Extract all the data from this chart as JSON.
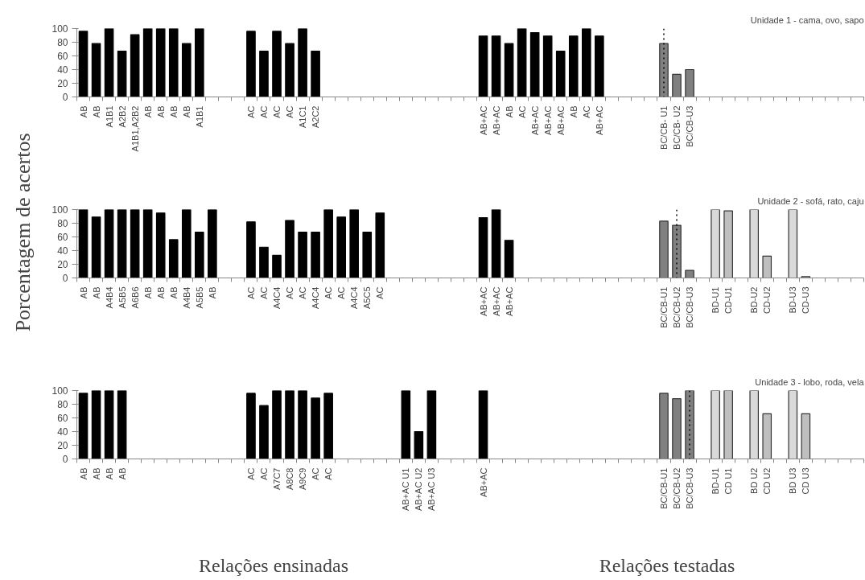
{
  "chart_data": [
    {
      "type": "bar",
      "title": "Unidade 1 - cama, ovo, sapo",
      "categories": [
        "AB",
        "AB",
        "A1B1",
        "A2B2",
        "A1B1,A2B2",
        "AB",
        "AB",
        "AB",
        "AB",
        "A1B1",
        null,
        null,
        null,
        "AC",
        "AC",
        "AC",
        "AC",
        "A1C1",
        "A2C2",
        null,
        null,
        null,
        null,
        null,
        null,
        null,
        null,
        null,
        null,
        null,
        null,
        "AB+AC",
        "AB+AC",
        "AB",
        "AC",
        "AB+AC",
        "AB+AC",
        "AB+AC",
        "AB",
        "AC",
        "AB+AC",
        null,
        null,
        null,
        null,
        "BC/CB- U1",
        "BC/CB- U2",
        "BC/CB-U3",
        null,
        null,
        null,
        null,
        null,
        null,
        null,
        null,
        null,
        null,
        null,
        null,
        null
      ],
      "series": [
        {
          "color": "#000000",
          "values": [
            96,
            78,
            100,
            67,
            91,
            100,
            100,
            100,
            78,
            100,
            null,
            null,
            null,
            96,
            67,
            96,
            78,
            100,
            67,
            null,
            null,
            null,
            null,
            null,
            null,
            null,
            null,
            null,
            null,
            null,
            null,
            89,
            89,
            78,
            100,
            94,
            89,
            67,
            89,
            100,
            89,
            null,
            null,
            null,
            null,
            null,
            null,
            null,
            null,
            null,
            null,
            null,
            null,
            null,
            null,
            null,
            null,
            null,
            null,
            null,
            null
          ]
        },
        {
          "color": "#808080",
          "values": [
            null,
            null,
            null,
            null,
            null,
            null,
            null,
            null,
            null,
            null,
            null,
            null,
            null,
            null,
            null,
            null,
            null,
            null,
            null,
            null,
            null,
            null,
            null,
            null,
            null,
            null,
            null,
            null,
            null,
            null,
            null,
            null,
            null,
            null,
            null,
            null,
            null,
            null,
            null,
            null,
            null,
            null,
            null,
            null,
            null,
            78,
            33,
            40,
            null,
            null,
            null,
            null,
            null,
            null,
            null,
            null,
            null,
            null,
            null,
            null,
            null
          ]
        }
      ],
      "ylim": [
        0,
        100
      ],
      "yticks": [
        0,
        20,
        40,
        60,
        80,
        100
      ],
      "ref_lines": [
        {
          "axis": "x",
          "value": "BC/CB- U1",
          "line_style": "dotted"
        }
      ]
    },
    {
      "type": "bar",
      "title": "Unidade 2 - sofá, rato, caju",
      "ylabel": "Porcentagem de acertos",
      "categories": [
        "AB",
        "AB",
        "A4B4",
        "A5B5",
        "A6B6",
        "AB",
        "AB",
        "AB",
        "A4B4",
        "A5B5",
        "AB",
        null,
        null,
        "AC",
        "AC",
        "A4C4",
        "AC",
        "AC",
        "A4C4",
        "AC",
        "AC",
        "A4C4",
        "A5C5",
        "AC",
        null,
        null,
        null,
        null,
        null,
        null,
        null,
        "AB+AC",
        "AB+AC",
        "AB+AC",
        null,
        null,
        null,
        null,
        null,
        null,
        null,
        null,
        null,
        null,
        null,
        "BC/CB-U1",
        "BC/CB-U2",
        "BC/CB-U3",
        null,
        "BD-U1",
        "CD-U1",
        null,
        "BD-U2",
        "CD-U2",
        null,
        "BD-U3",
        "CD-U3",
        null,
        null,
        null,
        null
      ],
      "series": [
        {
          "color": "#000000",
          "values": [
            100,
            89,
            100,
            100,
            100,
            100,
            95,
            56,
            100,
            67,
            100,
            null,
            null,
            82,
            45,
            33,
            84,
            67,
            67,
            100,
            89,
            100,
            67,
            95,
            null,
            null,
            null,
            null,
            null,
            null,
            null,
            88,
            100,
            55,
            null,
            null,
            null,
            null,
            null,
            null,
            null,
            null,
            null,
            null,
            null,
            null,
            null,
            null,
            null,
            null,
            null,
            null,
            null,
            null,
            null,
            null,
            null,
            null,
            null,
            null,
            null
          ]
        },
        {
          "color": "#808080",
          "values": [
            null,
            null,
            null,
            null,
            null,
            null,
            null,
            null,
            null,
            null,
            null,
            null,
            null,
            null,
            null,
            null,
            null,
            null,
            null,
            null,
            null,
            null,
            null,
            null,
            null,
            null,
            null,
            null,
            null,
            null,
            null,
            null,
            null,
            null,
            null,
            null,
            null,
            null,
            null,
            null,
            null,
            null,
            null,
            null,
            null,
            83,
            77,
            11,
            null,
            null,
            null,
            null,
            null,
            null,
            null,
            null,
            null,
            null,
            null,
            null,
            null
          ]
        },
        {
          "color": "#d9d9d9",
          "values": [
            null,
            null,
            null,
            null,
            null,
            null,
            null,
            null,
            null,
            null,
            null,
            null,
            null,
            null,
            null,
            null,
            null,
            null,
            null,
            null,
            null,
            null,
            null,
            null,
            null,
            null,
            null,
            null,
            null,
            null,
            null,
            null,
            null,
            null,
            null,
            null,
            null,
            null,
            null,
            null,
            null,
            null,
            null,
            null,
            null,
            null,
            null,
            null,
            null,
            100,
            null,
            null,
            100,
            null,
            null,
            100,
            null,
            null,
            null,
            null,
            null
          ]
        },
        {
          "color": "#bfbfbf",
          "values": [
            null,
            null,
            null,
            null,
            null,
            null,
            null,
            null,
            null,
            null,
            null,
            null,
            null,
            null,
            null,
            null,
            null,
            null,
            null,
            null,
            null,
            null,
            null,
            null,
            null,
            null,
            null,
            null,
            null,
            null,
            null,
            null,
            null,
            null,
            null,
            null,
            null,
            null,
            null,
            null,
            null,
            null,
            null,
            null,
            null,
            null,
            null,
            null,
            null,
            null,
            98,
            null,
            null,
            32,
            null,
            null,
            2,
            null,
            null,
            null,
            null
          ]
        }
      ],
      "ylim": [
        0,
        100
      ],
      "yticks": [
        0,
        20,
        40,
        60,
        80,
        100
      ],
      "ref_lines": [
        {
          "axis": "x",
          "value": "BC/CB-U2",
          "line_style": "dotted"
        }
      ]
    },
    {
      "type": "bar",
      "title": "Unidade 3 - lobo, roda, vela",
      "categories": [
        "AB",
        "AB",
        "AB",
        "AB",
        null,
        null,
        null,
        null,
        null,
        null,
        null,
        null,
        null,
        "AC",
        "AC",
        "A7C7",
        "A8C8",
        "A9C9",
        "AC",
        "AC",
        null,
        null,
        null,
        null,
        null,
        "AB+AC U1",
        "AB+AC U2",
        "AB+AC U3",
        null,
        null,
        null,
        "AB+AC",
        null,
        null,
        null,
        null,
        null,
        null,
        null,
        null,
        null,
        null,
        null,
        null,
        null,
        "BC/CB-U1",
        "BC/CB-U2",
        "BC/CB-U3",
        null,
        "BD-U1",
        "CD U1",
        null,
        "BD U2",
        "CD U2",
        null,
        "BD U3",
        "CD U3",
        null,
        null,
        null,
        null
      ],
      "series": [
        {
          "color": "#000000",
          "values": [
            96,
            100,
            100,
            100,
            null,
            null,
            null,
            null,
            null,
            null,
            null,
            null,
            null,
            96,
            78,
            100,
            100,
            100,
            89,
            96,
            null,
            null,
            null,
            null,
            null,
            100,
            40,
            100,
            null,
            null,
            null,
            100,
            null,
            null,
            null,
            null,
            null,
            null,
            null,
            null,
            null,
            null,
            null,
            null,
            null,
            null,
            null,
            null,
            null,
            null,
            null,
            null,
            null,
            null,
            null,
            null,
            null,
            null,
            null,
            null,
            null
          ]
        },
        {
          "color": "#808080",
          "values": [
            null,
            null,
            null,
            null,
            null,
            null,
            null,
            null,
            null,
            null,
            null,
            null,
            null,
            null,
            null,
            null,
            null,
            null,
            null,
            null,
            null,
            null,
            null,
            null,
            null,
            null,
            null,
            null,
            null,
            null,
            null,
            null,
            null,
            null,
            null,
            null,
            null,
            null,
            null,
            null,
            null,
            null,
            null,
            null,
            null,
            96,
            88,
            100,
            null,
            null,
            null,
            null,
            null,
            null,
            null,
            null,
            null,
            null,
            null,
            null,
            null
          ]
        },
        {
          "color": "#d9d9d9",
          "values": [
            null,
            null,
            null,
            null,
            null,
            null,
            null,
            null,
            null,
            null,
            null,
            null,
            null,
            null,
            null,
            null,
            null,
            null,
            null,
            null,
            null,
            null,
            null,
            null,
            null,
            null,
            null,
            null,
            null,
            null,
            null,
            null,
            null,
            null,
            null,
            null,
            null,
            null,
            null,
            null,
            null,
            null,
            null,
            null,
            null,
            null,
            null,
            null,
            null,
            100,
            null,
            null,
            100,
            null,
            null,
            100,
            null,
            null,
            null,
            null,
            null
          ]
        },
        {
          "color": "#bfbfbf",
          "values": [
            null,
            null,
            null,
            null,
            null,
            null,
            null,
            null,
            null,
            null,
            null,
            null,
            null,
            null,
            null,
            null,
            null,
            null,
            null,
            null,
            null,
            null,
            null,
            null,
            null,
            null,
            null,
            null,
            null,
            null,
            null,
            null,
            null,
            null,
            null,
            null,
            null,
            null,
            null,
            null,
            null,
            null,
            null,
            null,
            null,
            null,
            null,
            null,
            null,
            null,
            100,
            null,
            null,
            66,
            null,
            null,
            66,
            null,
            null,
            null,
            null
          ]
        }
      ],
      "ylim": [
        0,
        100
      ],
      "yticks": [
        0,
        20,
        40,
        60,
        80,
        100
      ],
      "ref_lines": [
        {
          "axis": "x",
          "value": "BC/CB-U3",
          "line_style": "dotted"
        }
      ],
      "annotations": [
        "Relações ensinadas",
        "Relações testadas"
      ]
    }
  ]
}
